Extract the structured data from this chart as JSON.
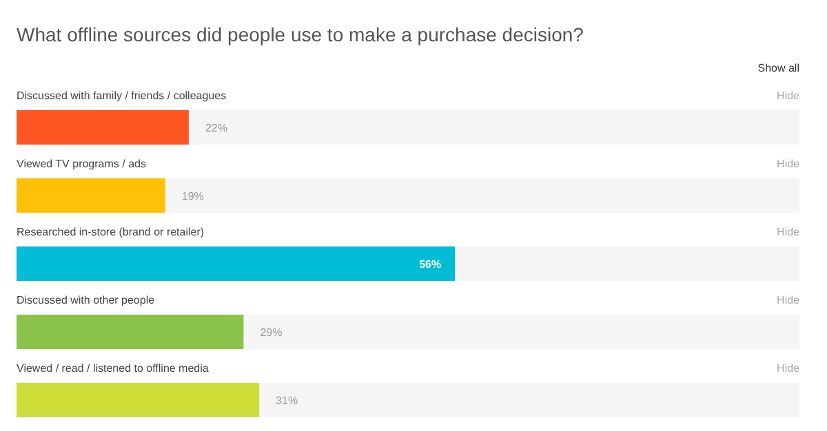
{
  "chart_data": {
    "type": "bar",
    "orientation": "horizontal",
    "title": "What offline sources did people use to make a purchase decision?",
    "categories": [
      "Discussed with family / friends / colleagues",
      "Viewed TV programs / ads",
      "Researched in-store (brand or retailer)",
      "Discussed with other people",
      "Viewed / read / listened to offline media"
    ],
    "values": [
      22,
      19,
      56,
      29,
      31
    ],
    "colors": [
      "#ff5722",
      "#ffc107",
      "#00bcd4",
      "#8bc34a",
      "#cddc39"
    ],
    "value_labels": [
      "22%",
      "19%",
      "56%",
      "29%",
      "31%"
    ],
    "xlim": [
      0,
      100
    ],
    "annotations": [
      "Show all",
      "Hide",
      "Hide",
      "Hide",
      "Hide",
      "Hide"
    ]
  }
}
